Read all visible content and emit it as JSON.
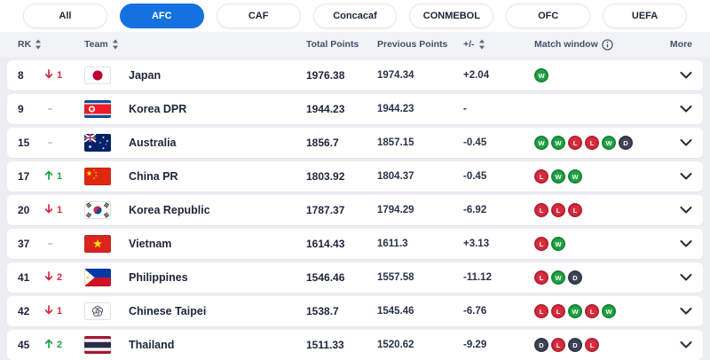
{
  "tabs": [
    {
      "label": "All",
      "active": false
    },
    {
      "label": "AFC",
      "active": true
    },
    {
      "label": "CAF",
      "active": false
    },
    {
      "label": "Concacaf",
      "active": false
    },
    {
      "label": "CONMEBOL",
      "active": false
    },
    {
      "label": "OFC",
      "active": false
    },
    {
      "label": "UEFA",
      "active": false
    }
  ],
  "header": {
    "rk": "RK",
    "team": "Team",
    "total_points": "Total Points",
    "previous_points": "Previous Points",
    "plus_minus": "+/-",
    "match_window": "Match window",
    "more": "More"
  },
  "icons": {
    "sort": "sort-arrows-icon",
    "match_window_info": "info-icon",
    "row_expand": "chevron-down-icon"
  },
  "colors": {
    "accent_blue": "#1570e0",
    "win_green": "#1fa344",
    "loss_red": "#d92a3e",
    "draw_dark": "#3e4457",
    "page_bg": "#eceef2"
  },
  "rows": [
    {
      "rank": "8",
      "movement": {
        "dir": "down",
        "value": "1"
      },
      "flag": "japan",
      "team": "Japan",
      "total": "1976.38",
      "previous": "1974.34",
      "delta": "+2.04",
      "window": [
        "W"
      ]
    },
    {
      "rank": "9",
      "movement": {
        "dir": "none",
        "value": ""
      },
      "flag": "korea-dpr",
      "team": "Korea DPR",
      "total": "1944.23",
      "previous": "1944.23",
      "delta": "-",
      "window": []
    },
    {
      "rank": "15",
      "movement": {
        "dir": "none",
        "value": ""
      },
      "flag": "australia",
      "team": "Australia",
      "total": "1856.7",
      "previous": "1857.15",
      "delta": "-0.45",
      "window": [
        "W",
        "W",
        "L",
        "L",
        "W",
        "D"
      ]
    },
    {
      "rank": "17",
      "movement": {
        "dir": "up",
        "value": "1"
      },
      "flag": "china",
      "team": "China PR",
      "total": "1803.92",
      "previous": "1804.37",
      "delta": "-0.45",
      "window": [
        "L",
        "W",
        "W"
      ]
    },
    {
      "rank": "20",
      "movement": {
        "dir": "down",
        "value": "1"
      },
      "flag": "korea-republic",
      "team": "Korea Republic",
      "total": "1787.37",
      "previous": "1794.29",
      "delta": "-6.92",
      "window": [
        "L",
        "L",
        "L"
      ]
    },
    {
      "rank": "37",
      "movement": {
        "dir": "none",
        "value": ""
      },
      "flag": "vietnam",
      "team": "Vietnam",
      "total": "1614.43",
      "previous": "1611.3",
      "delta": "+3.13",
      "window": [
        "L",
        "W"
      ]
    },
    {
      "rank": "41",
      "movement": {
        "dir": "down",
        "value": "2"
      },
      "flag": "philippines",
      "team": "Philippines",
      "total": "1546.46",
      "previous": "1557.58",
      "delta": "-11.12",
      "window": [
        "L",
        "W",
        "D"
      ]
    },
    {
      "rank": "42",
      "movement": {
        "dir": "down",
        "value": "1"
      },
      "flag": "chinese-taipei",
      "team": "Chinese Taipei",
      "total": "1538.7",
      "previous": "1545.46",
      "delta": "-6.76",
      "window": [
        "L",
        "L",
        "W",
        "L",
        "W"
      ]
    },
    {
      "rank": "45",
      "movement": {
        "dir": "up",
        "value": "2"
      },
      "flag": "thailand",
      "team": "Thailand",
      "total": "1511.33",
      "previous": "1520.62",
      "delta": "-9.29",
      "window": [
        "D",
        "L",
        "D",
        "L"
      ]
    }
  ]
}
